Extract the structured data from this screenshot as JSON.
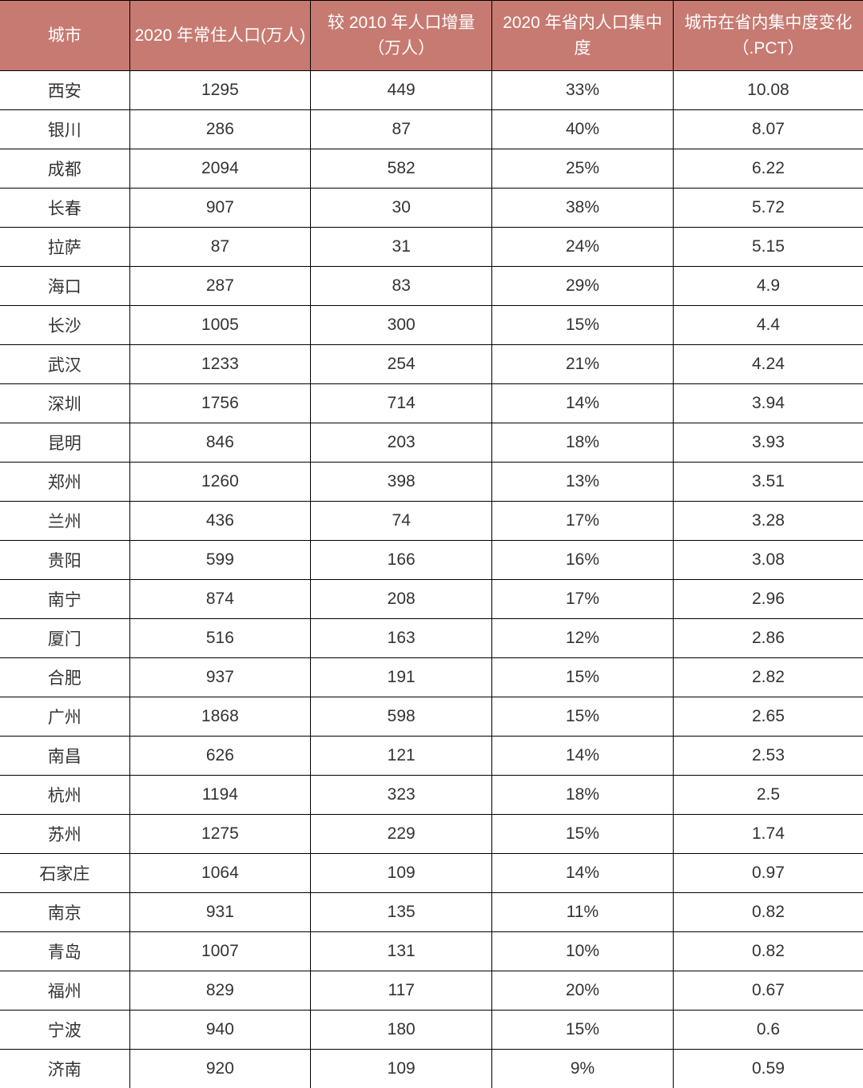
{
  "table": {
    "type": "table",
    "header_bg_color": "#c77a71",
    "header_text_color": "#ffffff",
    "border_color": "#000000",
    "cell_text_color": "#333333",
    "cell_bg_color": "#ffffff",
    "font_size": 21,
    "columns": [
      {
        "key": "city",
        "label": "城市",
        "width": "15%"
      },
      {
        "key": "pop2020",
        "label": "2020 年常住人口(万人)",
        "width": "21%"
      },
      {
        "key": "increase",
        "label": "较 2010 年人口增量（万人）",
        "width": "21%"
      },
      {
        "key": "concentration",
        "label": "2020 年省内人口集中度",
        "width": "21%"
      },
      {
        "key": "pct_change",
        "label": "城市在省内集中度变化（.PCT）",
        "width": "22%"
      }
    ],
    "rows": [
      {
        "city": "西安",
        "pop2020": "1295",
        "increase": "449",
        "concentration": "33%",
        "pct_change": "10.08"
      },
      {
        "city": "银川",
        "pop2020": "286",
        "increase": "87",
        "concentration": "40%",
        "pct_change": "8.07"
      },
      {
        "city": "成都",
        "pop2020": "2094",
        "increase": "582",
        "concentration": "25%",
        "pct_change": "6.22"
      },
      {
        "city": "长春",
        "pop2020": "907",
        "increase": "30",
        "concentration": "38%",
        "pct_change": "5.72"
      },
      {
        "city": "拉萨",
        "pop2020": "87",
        "increase": "31",
        "concentration": "24%",
        "pct_change": "5.15"
      },
      {
        "city": "海口",
        "pop2020": "287",
        "increase": "83",
        "concentration": "29%",
        "pct_change": "4.9"
      },
      {
        "city": "长沙",
        "pop2020": "1005",
        "increase": "300",
        "concentration": "15%",
        "pct_change": "4.4"
      },
      {
        "city": "武汉",
        "pop2020": "1233",
        "increase": "254",
        "concentration": "21%",
        "pct_change": "4.24"
      },
      {
        "city": "深圳",
        "pop2020": "1756",
        "increase": "714",
        "concentration": "14%",
        "pct_change": "3.94"
      },
      {
        "city": "昆明",
        "pop2020": "846",
        "increase": "203",
        "concentration": "18%",
        "pct_change": "3.93"
      },
      {
        "city": "郑州",
        "pop2020": "1260",
        "increase": "398",
        "concentration": "13%",
        "pct_change": "3.51"
      },
      {
        "city": "兰州",
        "pop2020": "436",
        "increase": "74",
        "concentration": "17%",
        "pct_change": "3.28"
      },
      {
        "city": "贵阳",
        "pop2020": "599",
        "increase": "166",
        "concentration": "16%",
        "pct_change": "3.08"
      },
      {
        "city": "南宁",
        "pop2020": "874",
        "increase": "208",
        "concentration": "17%",
        "pct_change": "2.96"
      },
      {
        "city": "厦门",
        "pop2020": "516",
        "increase": "163",
        "concentration": "12%",
        "pct_change": "2.86"
      },
      {
        "city": "合肥",
        "pop2020": "937",
        "increase": "191",
        "concentration": "15%",
        "pct_change": "2.82"
      },
      {
        "city": "广州",
        "pop2020": "1868",
        "increase": "598",
        "concentration": "15%",
        "pct_change": "2.65"
      },
      {
        "city": "南昌",
        "pop2020": "626",
        "increase": "121",
        "concentration": "14%",
        "pct_change": "2.53"
      },
      {
        "city": "杭州",
        "pop2020": "1194",
        "increase": "323",
        "concentration": "18%",
        "pct_change": "2.5"
      },
      {
        "city": "苏州",
        "pop2020": "1275",
        "increase": "229",
        "concentration": "15%",
        "pct_change": "1.74"
      },
      {
        "city": "石家庄",
        "pop2020": "1064",
        "increase": "109",
        "concentration": "14%",
        "pct_change": "0.97"
      },
      {
        "city": "南京",
        "pop2020": "931",
        "increase": "135",
        "concentration": "11%",
        "pct_change": "0.82"
      },
      {
        "city": "青岛",
        "pop2020": "1007",
        "increase": "131",
        "concentration": "10%",
        "pct_change": "0.82"
      },
      {
        "city": "福州",
        "pop2020": "829",
        "increase": "117",
        "concentration": "20%",
        "pct_change": "0.67"
      },
      {
        "city": "宁波",
        "pop2020": "940",
        "increase": "180",
        "concentration": "15%",
        "pct_change": "0.6"
      },
      {
        "city": "济南",
        "pop2020": "920",
        "increase": "109",
        "concentration": "9%",
        "pct_change": "0.59"
      }
    ]
  }
}
